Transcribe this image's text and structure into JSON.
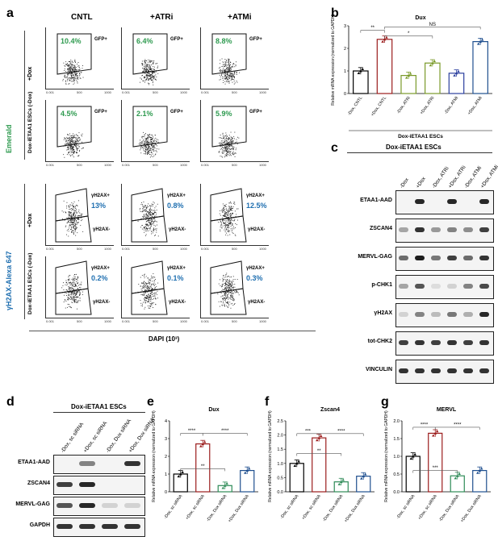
{
  "panels": {
    "a": "a",
    "b": "b",
    "c": "c",
    "d": "d",
    "e": "e",
    "f": "f",
    "g": "g"
  },
  "flow": {
    "col_titles": [
      "CNTL",
      "+ATRi",
      "+ATMi"
    ],
    "emerald_label": "Emerald",
    "gh2ax_label": "γH2AX-Alexa 647",
    "row_labels": [
      "+Dox",
      "Dox-iETAA1 ESCs (-Dox)",
      "+Dox",
      "Dox-iETAA1 ESCs (-Dox)"
    ],
    "gfp_gate": "GFP+",
    "yh2ax_pos": "γH2AX+",
    "yh2ax_neg": "γH2AX-",
    "gfp_pcts": [
      [
        "10.4%",
        "6.4%",
        "8.8%"
      ],
      [
        "4.5%",
        "2.1%",
        "5.9%"
      ]
    ],
    "yh2ax_pcts": [
      [
        "13%",
        "0.8%",
        "12.5%"
      ],
      [
        "0.2%",
        "0.1%",
        "0.3%"
      ]
    ],
    "ticks": [
      "0.001",
      "500",
      "1000"
    ],
    "xlabel": "DAPI (10³)"
  },
  "blot_c": {
    "header": "Dox-iETAA1 ESCs",
    "lanes": [
      "-Dox",
      "+Dox",
      "-Dox, ATRi",
      "+Dox, ATRi",
      "-Dox, ATMi",
      "+Dox, ATMi"
    ],
    "rows": [
      "ETAA1-AAD",
      "ZSCAN4",
      "MERVL-GAG",
      "p-CHK1",
      "γH2AX",
      "tot-CHK2",
      "VINCULIN"
    ]
  },
  "blot_d": {
    "header": "Dox-iETAA1 ESCs",
    "lanes": [
      "-Dox, sc siRNA",
      "+Dox, sc siRNA",
      "-Dox, Dux siRNA",
      "+Dox, Dux siRNA"
    ],
    "rows": [
      "ETAA1-AAD",
      "ZSCAN4",
      "MERVL-GAG",
      "GAPDH"
    ]
  },
  "chart_data": [
    {
      "type": "bar",
      "title": "Dux",
      "ylabel": "Relative mRNA expression (normalized to GAPDH)",
      "xlabel": "Dox-iETAA1 ESCs",
      "categories": [
        "-Dox, CNTL",
        "+Dox, CNTL",
        "-Dox, ATRi",
        "+Dox, ATRi",
        "-Dox, ATMi",
        "+Dox, ATMi"
      ],
      "values": [
        1.0,
        2.4,
        0.8,
        1.35,
        0.9,
        2.3
      ],
      "colors": [
        "#000000",
        "#9b1c1c",
        "#7a9a2a",
        "#7a9a2a",
        "#2b3f9e",
        "#1f4f8f"
      ],
      "ylim": [
        0,
        3
      ],
      "yticks": [
        "0",
        "1",
        "2",
        "3"
      ],
      "annotations": [
        "**",
        "*",
        "NS"
      ]
    },
    {
      "type": "bar",
      "title": "Dux",
      "ylabel": "Relative mRNA expression (normalized to GAPDH)",
      "categories": [
        "-Dox, sc siRNA",
        "+Dox, sc siRNA",
        "-Dox, Dux siRNA",
        "+Dox, Dux siRNA"
      ],
      "values": [
        1.0,
        2.7,
        0.35,
        1.2
      ],
      "colors": [
        "#000000",
        "#9b1c1c",
        "#2e8b57",
        "#1f4f8f"
      ],
      "ylim": [
        0,
        4
      ],
      "yticks": [
        "0",
        "1",
        "2",
        "3",
        "4"
      ],
      "annotations": [
        "****",
        "****",
        "**"
      ]
    },
    {
      "type": "bar",
      "title": "Zscan4",
      "ylabel": "Relative mRNA expression (normalized to GAPDH)",
      "categories": [
        "-Dox, sc siRNA",
        "+Dox, sc siRNA",
        "-Dox, Dux siRNA",
        "+Dox, Dux siRNA"
      ],
      "values": [
        1.0,
        1.9,
        0.35,
        0.55
      ],
      "colors": [
        "#000000",
        "#9b1c1c",
        "#2e8b57",
        "#1f4f8f"
      ],
      "ylim": [
        0,
        2.5
      ],
      "yticks": [
        "0.0",
        "0.5",
        "1.0",
        "1.5",
        "2.0",
        "2.5"
      ],
      "annotations": [
        "***",
        "****",
        "**"
      ]
    },
    {
      "type": "bar",
      "title": "MERVL",
      "ylabel": "Relative mRNA expression (normalized to GAPDH)",
      "categories": [
        "-Dox, sc siRNA",
        "+Dox, sc siRNA",
        "-Dox, Dux siRNA",
        "+Dox, Dux siRNA"
      ],
      "values": [
        1.0,
        1.65,
        0.45,
        0.6
      ],
      "colors": [
        "#000000",
        "#9b1c1c",
        "#2e8b57",
        "#1f4f8f"
      ],
      "ylim": [
        0,
        2.0
      ],
      "yticks": [
        "0.0",
        "0.5",
        "1.0",
        "1.5",
        "2.0"
      ],
      "annotations": [
        "****",
        "****",
        "***"
      ]
    }
  ]
}
